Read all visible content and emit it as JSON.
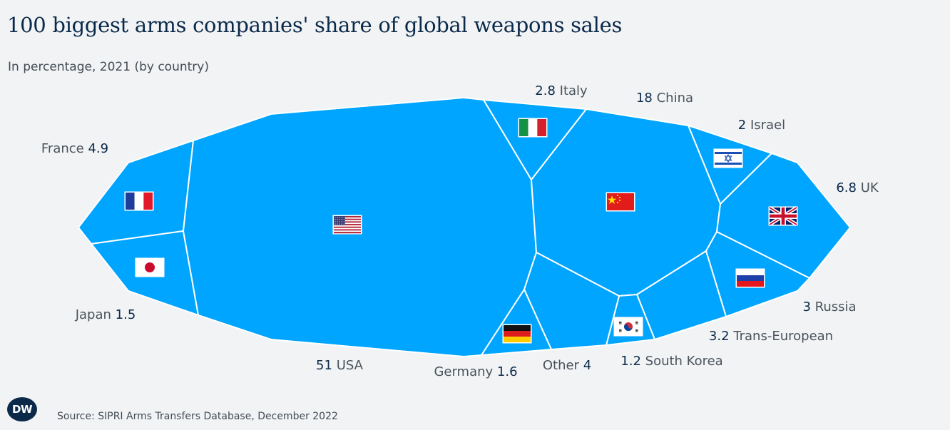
{
  "header": {
    "title": "100 biggest arms companies' share of global weapons sales",
    "subtitle": "In percentage, 2021 (by country)"
  },
  "footer": {
    "logo_text": "DW",
    "source": "Source: SIPRI Arms Transfers Database, December 2022"
  },
  "colors": {
    "cell_fill": "#00a5ff",
    "cell_border": "#ffffff",
    "value_text": "#0b2a4a",
    "label_text": "#4a535c"
  },
  "chart_data": {
    "type": "voronoi-treemap",
    "title": "100 biggest arms companies' share of global weapons sales",
    "subtitle": "In percentage, 2021 (by country)",
    "unit": "%",
    "items": [
      {
        "id": "usa",
        "name": "USA",
        "value": 51,
        "value_text": "51",
        "flag": "flag-usa"
      },
      {
        "id": "china",
        "name": "China",
        "value": 18,
        "value_text": "18",
        "flag": "flag-china"
      },
      {
        "id": "uk",
        "name": "UK",
        "value": 6.8,
        "value_text": "6.8",
        "flag": "flag-uk"
      },
      {
        "id": "france",
        "name": "France",
        "value": 4.9,
        "value_text": "4.9",
        "flag": "flag-france"
      },
      {
        "id": "other",
        "name": "Other",
        "value": 4,
        "value_text": "4",
        "flag": ""
      },
      {
        "id": "trans",
        "name": "Trans-European",
        "value": 3.2,
        "value_text": "3.2",
        "flag": ""
      },
      {
        "id": "russia",
        "name": "Russia",
        "value": 3,
        "value_text": "3",
        "flag": "flag-russia"
      },
      {
        "id": "italy",
        "name": "Italy",
        "value": 2.8,
        "value_text": "2.8",
        "flag": "flag-italy"
      },
      {
        "id": "israel",
        "name": "Israel",
        "value": 2,
        "value_text": "2",
        "flag": "flag-israel"
      },
      {
        "id": "germany",
        "name": "Germany",
        "value": 1.6,
        "value_text": "1.6",
        "flag": "flag-germany"
      },
      {
        "id": "japan",
        "name": "Japan",
        "value": 1.5,
        "value_text": "1.5",
        "flag": "flag-japan"
      },
      {
        "id": "korea",
        "name": "South Korea",
        "value": 1.2,
        "value_text": "1.2",
        "flag": "flag-south-korea"
      }
    ]
  }
}
